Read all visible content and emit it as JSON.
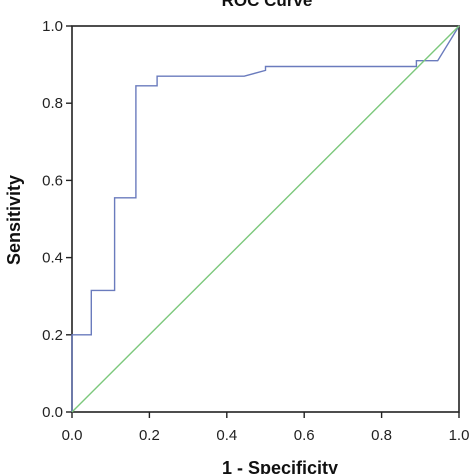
{
  "chart_data": {
    "type": "line",
    "title": "ROC Curve",
    "xlabel": "1 - Specificity",
    "ylabel": "Sensitivity",
    "xlim": [
      0.0,
      1.0
    ],
    "ylim": [
      0.0,
      1.0
    ],
    "x_ticks": [
      "0.0",
      "0.2",
      "0.4",
      "0.6",
      "0.8",
      "1.0"
    ],
    "y_ticks": [
      "0.0",
      "0.2",
      "0.4",
      "0.6",
      "0.8",
      "1.0"
    ],
    "grid": false,
    "series": [
      {
        "color": "#6a7bbd",
        "points": [
          [
            0.0,
            0.0
          ],
          [
            0.0,
            0.2
          ],
          [
            0.05,
            0.2
          ],
          [
            0.05,
            0.315
          ],
          [
            0.11,
            0.315
          ],
          [
            0.11,
            0.555
          ],
          [
            0.165,
            0.555
          ],
          [
            0.165,
            0.845
          ],
          [
            0.22,
            0.845
          ],
          [
            0.22,
            0.87
          ],
          [
            0.445,
            0.87
          ],
          [
            0.5,
            0.885
          ],
          [
            0.5,
            0.895
          ],
          [
            0.89,
            0.895
          ],
          [
            0.89,
            0.91
          ],
          [
            0.945,
            0.91
          ],
          [
            1.0,
            1.0
          ]
        ]
      },
      {
        "color": "#7cc87c",
        "points": [
          [
            0.0,
            0.0
          ],
          [
            1.0,
            1.0
          ]
        ]
      }
    ]
  }
}
